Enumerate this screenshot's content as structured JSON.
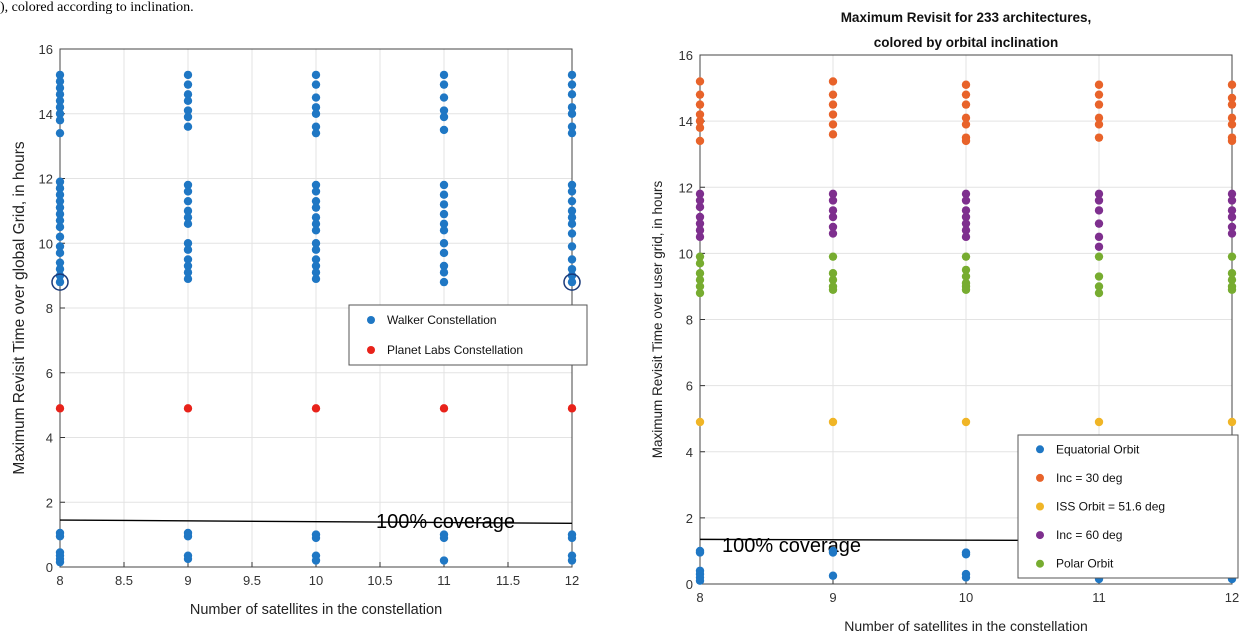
{
  "caption_fragment": "), colored according to inclination.",
  "colors": {
    "walker": "#1f77c4",
    "planet": "#e8221a",
    "equatorial": "#1f77c4",
    "inc30": "#e8632a",
    "iss": "#f0b526",
    "inc60": "#7e2f8e",
    "polar": "#77ac30",
    "circle_marker": "#1a3a7a"
  },
  "chart_data": [
    {
      "type": "scatter",
      "title": "",
      "xlabel": "Number of satellites in the constellation",
      "ylabel": "Maximum Revisit Time over global Grid, in hours",
      "xlim": [
        8,
        12
      ],
      "ylim": [
        0,
        16
      ],
      "xticks": [
        "8",
        "8.5",
        "9",
        "9.5",
        "10",
        "10.5",
        "11",
        "11.5",
        "12"
      ],
      "yticks": [
        "0",
        "2",
        "4",
        "6",
        "8",
        "10",
        "12",
        "14",
        "16"
      ],
      "grid": true,
      "legend_position": "right",
      "series": [
        {
          "name": "Walker Constellation",
          "color_key": "walker",
          "points": [
            [
              8,
              15.2
            ],
            [
              8,
              15.0
            ],
            [
              8,
              14.8
            ],
            [
              8,
              14.6
            ],
            [
              8,
              14.4
            ],
            [
              8,
              14.2
            ],
            [
              8,
              14.0
            ],
            [
              8,
              13.8
            ],
            [
              8,
              13.4
            ],
            [
              8,
              11.9
            ],
            [
              8,
              11.7
            ],
            [
              8,
              11.5
            ],
            [
              8,
              11.3
            ],
            [
              8,
              11.1
            ],
            [
              8,
              10.9
            ],
            [
              8,
              10.7
            ],
            [
              8,
              10.5
            ],
            [
              8,
              10.2
            ],
            [
              8,
              9.9
            ],
            [
              8,
              9.7
            ],
            [
              8,
              9.4
            ],
            [
              8,
              9.2
            ],
            [
              8,
              9.0
            ],
            [
              8,
              8.8
            ],
            [
              8,
              1.05
            ],
            [
              8,
              0.95
            ],
            [
              8,
              0.45
            ],
            [
              8,
              0.35
            ],
            [
              8,
              0.25
            ],
            [
              8,
              0.15
            ],
            [
              9,
              15.2
            ],
            [
              9,
              14.9
            ],
            [
              9,
              14.6
            ],
            [
              9,
              14.4
            ],
            [
              9,
              14.1
            ],
            [
              9,
              13.9
            ],
            [
              9,
              13.6
            ],
            [
              9,
              11.8
            ],
            [
              9,
              11.6
            ],
            [
              9,
              11.3
            ],
            [
              9,
              11.0
            ],
            [
              9,
              10.8
            ],
            [
              9,
              10.6
            ],
            [
              9,
              10.0
            ],
            [
              9,
              9.8
            ],
            [
              9,
              9.5
            ],
            [
              9,
              9.3
            ],
            [
              9,
              9.1
            ],
            [
              9,
              8.9
            ],
            [
              9,
              1.05
            ],
            [
              9,
              0.95
            ],
            [
              9,
              0.35
            ],
            [
              9,
              0.25
            ],
            [
              10,
              15.2
            ],
            [
              10,
              14.9
            ],
            [
              10,
              14.5
            ],
            [
              10,
              14.2
            ],
            [
              10,
              14.0
            ],
            [
              10,
              13.6
            ],
            [
              10,
              13.4
            ],
            [
              10,
              11.8
            ],
            [
              10,
              11.6
            ],
            [
              10,
              11.3
            ],
            [
              10,
              11.1
            ],
            [
              10,
              10.8
            ],
            [
              10,
              10.6
            ],
            [
              10,
              10.4
            ],
            [
              10,
              10.0
            ],
            [
              10,
              9.8
            ],
            [
              10,
              9.5
            ],
            [
              10,
              9.3
            ],
            [
              10,
              9.1
            ],
            [
              10,
              8.9
            ],
            [
              10,
              1.0
            ],
            [
              10,
              0.9
            ],
            [
              10,
              0.35
            ],
            [
              10,
              0.2
            ],
            [
              11,
              15.2
            ],
            [
              11,
              14.9
            ],
            [
              11,
              14.5
            ],
            [
              11,
              14.1
            ],
            [
              11,
              13.9
            ],
            [
              11,
              13.5
            ],
            [
              11,
              11.8
            ],
            [
              11,
              11.5
            ],
            [
              11,
              11.2
            ],
            [
              11,
              10.9
            ],
            [
              11,
              10.6
            ],
            [
              11,
              10.4
            ],
            [
              11,
              10.0
            ],
            [
              11,
              9.7
            ],
            [
              11,
              9.3
            ],
            [
              11,
              9.1
            ],
            [
              11,
              8.8
            ],
            [
              11,
              1.0
            ],
            [
              11,
              0.9
            ],
            [
              11,
              0.2
            ],
            [
              12,
              15.2
            ],
            [
              12,
              14.9
            ],
            [
              12,
              14.6
            ],
            [
              12,
              14.2
            ],
            [
              12,
              14.0
            ],
            [
              12,
              13.6
            ],
            [
              12,
              13.4
            ],
            [
              12,
              11.8
            ],
            [
              12,
              11.6
            ],
            [
              12,
              11.3
            ],
            [
              12,
              11.0
            ],
            [
              12,
              10.8
            ],
            [
              12,
              10.6
            ],
            [
              12,
              10.3
            ],
            [
              12,
              9.9
            ],
            [
              12,
              9.5
            ],
            [
              12,
              9.2
            ],
            [
              12,
              9.0
            ],
            [
              12,
              8.8
            ],
            [
              12,
              1.0
            ],
            [
              12,
              0.9
            ],
            [
              12,
              0.35
            ],
            [
              12,
              0.2
            ]
          ]
        },
        {
          "name": "Planet Labs Constellation",
          "color_key": "planet",
          "points": [
            [
              8,
              4.9
            ],
            [
              9,
              4.9
            ],
            [
              10,
              4.9
            ],
            [
              11,
              4.9
            ],
            [
              12,
              4.9
            ]
          ]
        }
      ],
      "highlighted_points": [
        [
          8,
          8.8
        ],
        [
          12,
          8.8
        ]
      ],
      "annotation": {
        "text": "100% coverage",
        "line": [
          [
            8,
            1.45
          ],
          [
            12,
            1.35
          ]
        ]
      }
    },
    {
      "type": "scatter",
      "title": "Maximum Revisit for 233 architectures,",
      "subtitle": "colored by orbital inclination",
      "xlabel": "Number of satellites in the constellation",
      "ylabel": "Maximum Revisit Time over user grid, in hours",
      "xlim": [
        8,
        12
      ],
      "ylim": [
        0,
        16
      ],
      "xticks": [
        "8",
        "9",
        "10",
        "11",
        "12"
      ],
      "yticks": [
        "0",
        "2",
        "4",
        "6",
        "8",
        "10",
        "12",
        "14",
        "16"
      ],
      "grid": true,
      "legend_position": "bottom-right",
      "series": [
        {
          "name": "Equatorial Orbit",
          "color_key": "equatorial",
          "points": [
            [
              8,
              1.0
            ],
            [
              8,
              0.95
            ],
            [
              8,
              0.4
            ],
            [
              8,
              0.3
            ],
            [
              8,
              0.2
            ],
            [
              8,
              0.1
            ],
            [
              9,
              1.0
            ],
            [
              9,
              0.95
            ],
            [
              9,
              0.25
            ],
            [
              10,
              0.95
            ],
            [
              10,
              0.9
            ],
            [
              10,
              0.3
            ],
            [
              10,
              0.2
            ],
            [
              11,
              0.95
            ],
            [
              11,
              0.9
            ],
            [
              11,
              0.15
            ],
            [
              12,
              0.95
            ],
            [
              12,
              0.3
            ],
            [
              12,
              0.2
            ],
            [
              12,
              0.15
            ]
          ]
        },
        {
          "name": "Inc = 30 deg",
          "color_key": "inc30",
          "points": [
            [
              8,
              15.2
            ],
            [
              8,
              14.8
            ],
            [
              8,
              14.5
            ],
            [
              8,
              14.2
            ],
            [
              8,
              14.0
            ],
            [
              8,
              13.8
            ],
            [
              8,
              13.4
            ],
            [
              9,
              15.2
            ],
            [
              9,
              14.8
            ],
            [
              9,
              14.5
            ],
            [
              9,
              14.2
            ],
            [
              9,
              13.9
            ],
            [
              9,
              13.6
            ],
            [
              10,
              15.1
            ],
            [
              10,
              14.8
            ],
            [
              10,
              14.5
            ],
            [
              10,
              14.1
            ],
            [
              10,
              13.9
            ],
            [
              10,
              13.5
            ],
            [
              10,
              13.4
            ],
            [
              11,
              15.1
            ],
            [
              11,
              14.8
            ],
            [
              11,
              14.5
            ],
            [
              11,
              14.1
            ],
            [
              11,
              13.9
            ],
            [
              11,
              13.5
            ],
            [
              12,
              15.1
            ],
            [
              12,
              14.7
            ],
            [
              12,
              14.5
            ],
            [
              12,
              14.1
            ],
            [
              12,
              13.9
            ],
            [
              12,
              13.5
            ],
            [
              12,
              13.4
            ]
          ]
        },
        {
          "name": "ISS Orbit = 51.6 deg",
          "color_key": "iss",
          "points": [
            [
              8,
              4.9
            ],
            [
              9,
              4.9
            ],
            [
              10,
              4.9
            ],
            [
              11,
              4.9
            ],
            [
              12,
              4.9
            ]
          ]
        },
        {
          "name": "Inc = 60 deg",
          "color_key": "inc60",
          "points": [
            [
              8,
              11.8
            ],
            [
              8,
              11.6
            ],
            [
              8,
              11.4
            ],
            [
              8,
              11.1
            ],
            [
              8,
              10.9
            ],
            [
              8,
              10.7
            ],
            [
              8,
              10.5
            ],
            [
              9,
              11.8
            ],
            [
              9,
              11.6
            ],
            [
              9,
              11.3
            ],
            [
              9,
              11.1
            ],
            [
              9,
              10.8
            ],
            [
              9,
              10.6
            ],
            [
              10,
              11.8
            ],
            [
              10,
              11.6
            ],
            [
              10,
              11.3
            ],
            [
              10,
              11.1
            ],
            [
              10,
              10.9
            ],
            [
              10,
              10.7
            ],
            [
              10,
              10.5
            ],
            [
              11,
              11.8
            ],
            [
              11,
              11.6
            ],
            [
              11,
              11.3
            ],
            [
              11,
              10.9
            ],
            [
              11,
              10.5
            ],
            [
              11,
              10.2
            ],
            [
              12,
              11.8
            ],
            [
              12,
              11.6
            ],
            [
              12,
              11.3
            ],
            [
              12,
              11.1
            ],
            [
              12,
              10.8
            ],
            [
              12,
              10.6
            ]
          ]
        },
        {
          "name": "Polar Orbit",
          "color_key": "polar",
          "points": [
            [
              8,
              9.9
            ],
            [
              8,
              9.7
            ],
            [
              8,
              9.4
            ],
            [
              8,
              9.2
            ],
            [
              8,
              9.0
            ],
            [
              8,
              8.8
            ],
            [
              9,
              9.9
            ],
            [
              9,
              9.4
            ],
            [
              9,
              9.2
            ],
            [
              9,
              9.0
            ],
            [
              9,
              8.9
            ],
            [
              10,
              9.9
            ],
            [
              10,
              9.5
            ],
            [
              10,
              9.3
            ],
            [
              10,
              9.1
            ],
            [
              10,
              9.0
            ],
            [
              10,
              8.9
            ],
            [
              11,
              9.9
            ],
            [
              11,
              9.3
            ],
            [
              11,
              9.0
            ],
            [
              11,
              8.8
            ],
            [
              12,
              9.9
            ],
            [
              12,
              9.4
            ],
            [
              12,
              9.2
            ],
            [
              12,
              9.0
            ],
            [
              12,
              8.9
            ]
          ]
        }
      ],
      "annotation": {
        "text": "100% coverage",
        "line": [
          [
            8,
            1.35
          ],
          [
            12,
            1.3
          ]
        ]
      }
    }
  ]
}
